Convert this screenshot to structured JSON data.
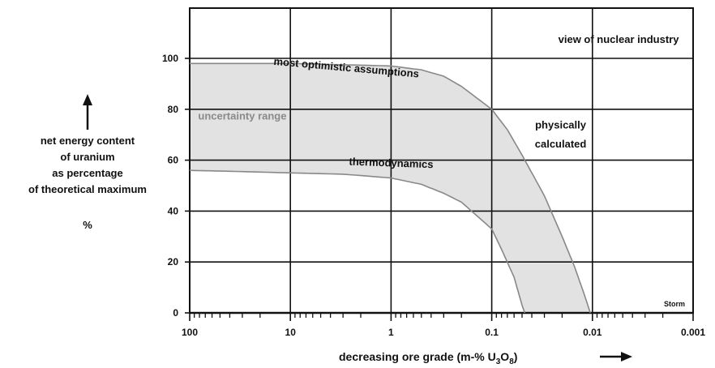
{
  "chart_data": {
    "type": "area",
    "x_scale": "log",
    "x_reversed": true,
    "xlim": [
      100,
      0.001
    ],
    "ylim": [
      0,
      100
    ],
    "grid": true,
    "ylabel_lines": [
      "net energy content",
      "of uranium",
      "as percentage",
      "of theoretical maximum"
    ],
    "ylabel_unit": "%",
    "xlabel": "decreasing ore grade   (m-% U",
    "xlabel_sub1": "3",
    "xlabel_mid": "O",
    "xlabel_sub2": "8",
    "xlabel_end": ")",
    "x_ticks": [
      {
        "value": 100,
        "label": "100"
      },
      {
        "value": 10,
        "label": "10"
      },
      {
        "value": 1,
        "label": "1"
      },
      {
        "value": 0.1,
        "label": "0.1"
      },
      {
        "value": 0.01,
        "label": "0.01"
      },
      {
        "value": 0.001,
        "label": "0.001"
      }
    ],
    "y_ticks": [
      {
        "value": 0,
        "label": "0"
      },
      {
        "value": 20,
        "label": "20"
      },
      {
        "value": 40,
        "label": "40"
      },
      {
        "value": 60,
        "label": "60"
      },
      {
        "value": 80,
        "label": "80"
      },
      {
        "value": 100,
        "label": "100"
      }
    ],
    "upper_curve": [
      {
        "x": 100,
        "y": 98
      },
      {
        "x": 30,
        "y": 98
      },
      {
        "x": 10,
        "y": 98
      },
      {
        "x": 3,
        "y": 97.5
      },
      {
        "x": 1,
        "y": 97
      },
      {
        "x": 0.5,
        "y": 95.5
      },
      {
        "x": 0.3,
        "y": 93
      },
      {
        "x": 0.2,
        "y": 89
      },
      {
        "x": 0.1,
        "y": 80
      },
      {
        "x": 0.07,
        "y": 72
      },
      {
        "x": 0.05,
        "y": 62
      },
      {
        "x": 0.03,
        "y": 46
      },
      {
        "x": 0.02,
        "y": 30
      },
      {
        "x": 0.015,
        "y": 18
      },
      {
        "x": 0.012,
        "y": 7
      },
      {
        "x": 0.0105,
        "y": 0
      }
    ],
    "lower_curve": [
      {
        "x": 100,
        "y": 56
      },
      {
        "x": 30,
        "y": 55.5
      },
      {
        "x": 10,
        "y": 55
      },
      {
        "x": 3,
        "y": 54.5
      },
      {
        "x": 1,
        "y": 53
      },
      {
        "x": 0.5,
        "y": 50.5
      },
      {
        "x": 0.3,
        "y": 47
      },
      {
        "x": 0.2,
        "y": 43.5
      },
      {
        "x": 0.1,
        "y": 33
      },
      {
        "x": 0.08,
        "y": 25
      },
      {
        "x": 0.06,
        "y": 14
      },
      {
        "x": 0.05,
        "y": 3
      },
      {
        "x": 0.047,
        "y": 0
      }
    ],
    "annotations": [
      {
        "text": "most optimistic assumptions",
        "x": 2.8,
        "y": 95,
        "rotate": 5,
        "anchor": "middle",
        "style": "dark"
      },
      {
        "text": "uncertainty range",
        "x": 30,
        "y": 76,
        "rotate": 0,
        "anchor": "middle",
        "style": "gray"
      },
      {
        "text": "thermodynamics",
        "x": 1.0,
        "y": 57.5,
        "rotate": 2,
        "anchor": "middle",
        "style": "dark"
      },
      {
        "text": "view of nuclear industry",
        "x": 0.0055,
        "y": 106,
        "rotate": 0,
        "anchor": "middle",
        "style": "dark"
      },
      {
        "text": "physically",
        "x": 0.0207,
        "y": 72.5,
        "rotate": 0,
        "anchor": "middle",
        "style": "dark"
      },
      {
        "text": "calculated",
        "x": 0.0207,
        "y": 65,
        "rotate": 0,
        "anchor": "middle",
        "style": "dark"
      }
    ],
    "corner_label": "Storm",
    "band_fill": "#e2e2e2",
    "curve_color": "#888888",
    "grid_color": "#111111"
  }
}
